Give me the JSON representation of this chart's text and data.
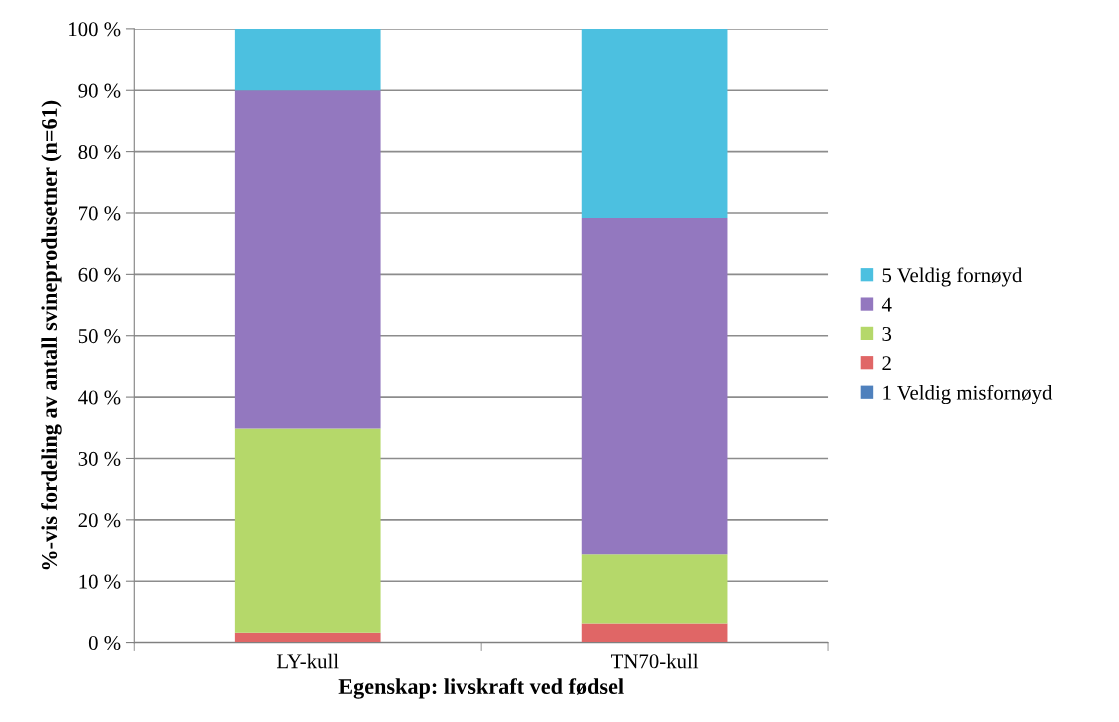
{
  "chart_data": {
    "type": "bar",
    "stacked": true,
    "xlabel": "Egenskap: livskraft ved fødsel",
    "ylabel": "%-vis fordeling av antall svineprodusetner (n=61)",
    "categories": [
      "LY-kull",
      "TN70-kull"
    ],
    "series": [
      {
        "name": "1 Veldig misfornøyd",
        "color": "#4f81bd",
        "values": [
          0,
          0
        ]
      },
      {
        "name": "2",
        "color": "#e06666",
        "values": [
          1.6,
          3.1
        ]
      },
      {
        "name": "3",
        "color": "#b5d86a",
        "values": [
          33.3,
          11.3
        ]
      },
      {
        "name": "4",
        "color": "#9378bf",
        "values": [
          55.1,
          54.8
        ]
      },
      {
        "name": "5 Veldig fornøyd",
        "color": "#4cc0e0",
        "values": [
          10.0,
          30.8
        ]
      }
    ],
    "ylim": [
      0,
      100
    ],
    "yticks": [
      {
        "value": 0,
        "label": "0 %"
      },
      {
        "value": 10,
        "label": "10 %"
      },
      {
        "value": 20,
        "label": "20 %"
      },
      {
        "value": 30,
        "label": "30 %"
      },
      {
        "value": 40,
        "label": "40 %"
      },
      {
        "value": 50,
        "label": "50 %"
      },
      {
        "value": 60,
        "label": "60 %"
      },
      {
        "value": 70,
        "label": "70 %"
      },
      {
        "value": 80,
        "label": "80 %"
      },
      {
        "value": 90,
        "label": "90 %"
      },
      {
        "value": 100,
        "label": "100 %"
      }
    ],
    "grid": "y",
    "legend": "right"
  }
}
